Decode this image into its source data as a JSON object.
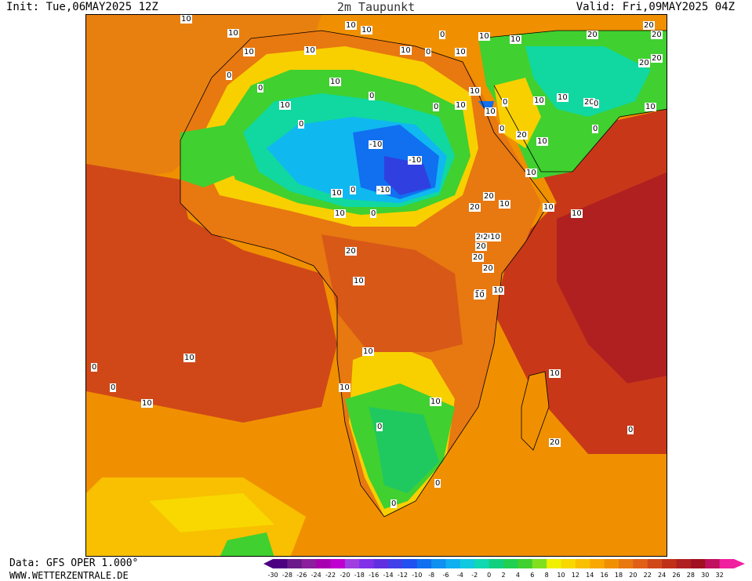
{
  "header": {
    "init": "Init: Tue,06MAY2025 12Z",
    "title": "2m Taupunkt",
    "valid": "Valid: Fri,09MAY2025 04Z"
  },
  "footer": {
    "source": "Data: GFS OPER 1.000°",
    "website": "WWW.WETTERZENTRALE.DE"
  },
  "legend": {
    "values": [
      "-30",
      "-28",
      "-26",
      "-24",
      "-22",
      "-20",
      "-18",
      "-16",
      "-14",
      "-12",
      "-10",
      "-8",
      "-6",
      "-4",
      "-2",
      "0",
      "2",
      "4",
      "6",
      "8",
      "10",
      "12",
      "14",
      "16",
      "18",
      "20",
      "22",
      "24",
      "26",
      "28",
      "30",
      "32"
    ],
    "colors": [
      "#4b0082",
      "#6a1a8a",
      "#8b1f9c",
      "#a800b0",
      "#c000d0",
      "#a040e0",
      "#8030e8",
      "#6030e0",
      "#4040e8",
      "#2050f0",
      "#1070f0",
      "#1090f0",
      "#10b0f0",
      "#10c8e0",
      "#10d8b0",
      "#10d080",
      "#20d050",
      "#40d030",
      "#80e020",
      "#f0f000",
      "#f8d800",
      "#f8c000",
      "#f8a800",
      "#f09000",
      "#e87810",
      "#e06018",
      "#d04818",
      "#c03018",
      "#b02020",
      "#a01020",
      "#c01060",
      "#f020a0"
    ]
  },
  "map": {
    "colors": {
      "ocean_warm": "#d04818",
      "ocean_mid": "#e07010",
      "ocean_cool": "#f09000",
      "dry_yellow": "#f8d000",
      "green": "#40d030",
      "teal": "#10d8a0",
      "cyan": "#10b8f0",
      "blue": "#1070f0",
      "deep_blue": "#3040e0",
      "dark_red": "#b02020"
    },
    "contour_labels": [
      "10",
      "10",
      "10",
      "10",
      "10",
      "10",
      "0",
      "0",
      "10",
      "0",
      "0",
      "10",
      "10",
      "10",
      "0",
      "10",
      "0",
      "10",
      "0",
      "-10",
      "-10",
      "-10",
      "0",
      "10",
      "0",
      "10",
      "20",
      "0",
      "10",
      "10",
      "20",
      "20",
      "20",
      "20",
      "20",
      "20",
      "20",
      "20",
      "10",
      "10",
      "10",
      "10",
      "10",
      "20",
      "20",
      "20",
      "20",
      "20",
      "20",
      "10",
      "0",
      "0",
      "10",
      "0",
      "10",
      "10",
      "10",
      "10",
      "10",
      "20",
      "0",
      "10",
      "10",
      "10",
      "0",
      "0",
      "20",
      "0",
      "10",
      "0",
      "0",
      "10",
      "10",
      "10"
    ]
  }
}
